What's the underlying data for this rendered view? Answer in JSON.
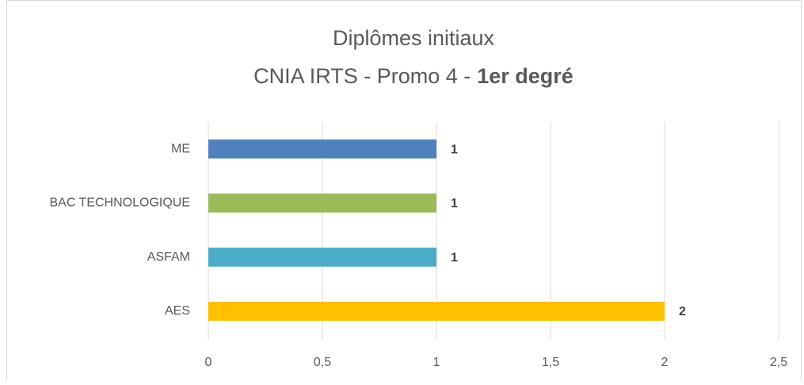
{
  "chart_data": {
    "type": "bar",
    "orientation": "horizontal",
    "title": "Diplômes initiaux",
    "subtitle": "CNIA IRTS - Promo 4 -",
    "subtitle_bold": "1er degré",
    "categories": [
      "ME",
      "BAC TECHNOLOGIQUE",
      "ASFAM",
      "AES"
    ],
    "values": [
      1,
      1,
      1,
      2
    ],
    "colors": [
      "#4f81bd",
      "#9bbb59",
      "#4bacc6",
      "#ffc000"
    ],
    "xlim": [
      0,
      2.5
    ],
    "xticks": [
      0,
      {
        "value": 0.5,
        "label": "0,5"
      },
      1,
      {
        "value": 1.5,
        "label": "1,5"
      },
      2,
      {
        "value": 2.5,
        "label": "2,5"
      }
    ],
    "grid": true,
    "data_labels": true
  }
}
